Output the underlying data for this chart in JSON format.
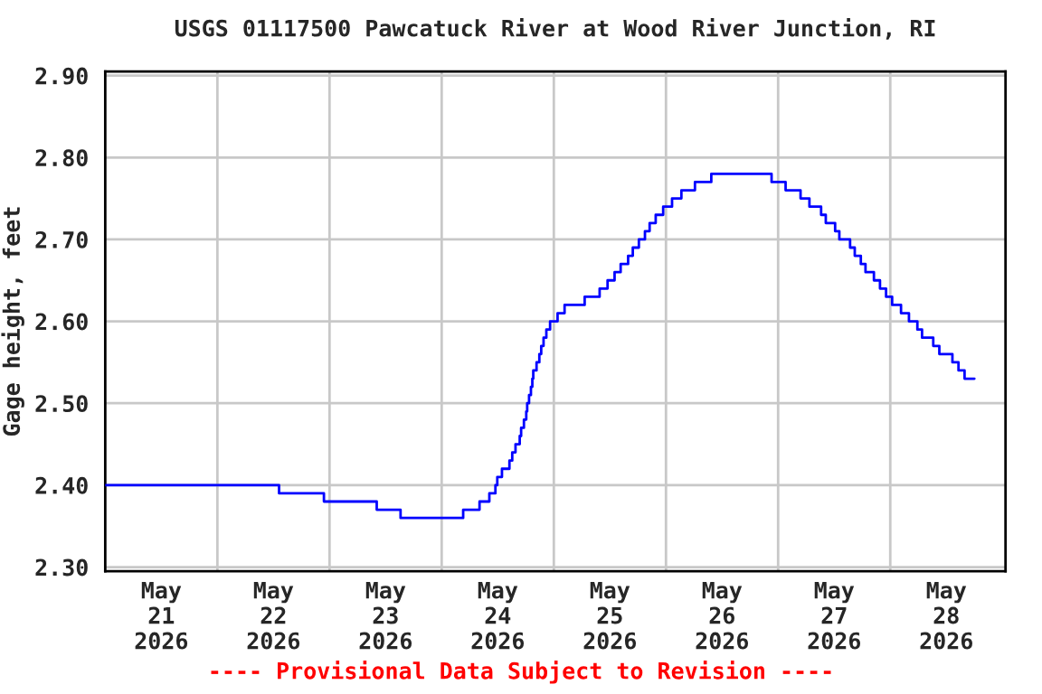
{
  "chart_data": {
    "type": "step",
    "title": "USGS 01117500 Pawcatuck River at Wood River Junction, RI",
    "ylabel": "Gage height, feet",
    "annotations": [
      "---- Provisional Data Subject to Revision ----"
    ],
    "x": [
      "2026-05-21T00:00",
      "2026-05-22T13:12",
      "2026-05-22T22:48",
      "2026-05-23T10:06",
      "2026-05-23T15:12",
      "2026-05-24T04:36",
      "2026-05-24T08:06",
      "2026-05-24T10:12",
      "2026-05-24T11:30",
      "2026-05-24T11:54",
      "2026-05-24T12:54",
      "2026-05-24T14:30",
      "2026-05-24T15:06",
      "2026-05-24T15:48",
      "2026-05-24T16:42",
      "2026-05-24T17:00",
      "2026-05-24T17:36",
      "2026-05-24T18:06",
      "2026-05-24T18:18",
      "2026-05-24T18:42",
      "2026-05-24T19:06",
      "2026-05-24T19:24",
      "2026-05-24T19:36",
      "2026-05-24T20:18",
      "2026-05-24T20:54",
      "2026-05-24T21:18",
      "2026-05-24T21:48",
      "2026-05-24T22:24",
      "2026-05-24T23:12",
      "2026-05-25T00:48",
      "2026-05-25T02:18",
      "2026-05-25T06:36",
      "2026-05-25T09:48",
      "2026-05-25T11:30",
      "2026-05-25T13:00",
      "2026-05-25T14:18",
      "2026-05-25T15:54",
      "2026-05-25T16:54",
      "2026-05-25T18:12",
      "2026-05-25T19:30",
      "2026-05-25T20:30",
      "2026-05-25T21:48",
      "2026-05-25T23:24",
      "2026-05-26T01:18",
      "2026-05-26T03:18",
      "2026-05-26T06:12",
      "2026-05-26T09:42",
      "2026-05-26T22:36",
      "2026-05-27T01:36",
      "2026-05-27T04:48",
      "2026-05-27T06:42",
      "2026-05-27T09:12",
      "2026-05-27T10:12",
      "2026-05-27T12:12",
      "2026-05-27T13:06",
      "2026-05-27T15:24",
      "2026-05-27T16:24",
      "2026-05-27T17:42",
      "2026-05-27T18:42",
      "2026-05-27T20:30",
      "2026-05-27T21:48",
      "2026-05-27T23:06",
      "2026-05-28T00:24",
      "2026-05-28T02:18",
      "2026-05-28T04:00",
      "2026-05-28T05:48",
      "2026-05-28T06:48",
      "2026-05-28T09:12",
      "2026-05-28T10:30",
      "2026-05-28T13:18",
      "2026-05-28T14:36",
      "2026-05-28T15:54",
      "2026-05-28T18:00"
    ],
    "series": [
      {
        "color": "#0000ff",
        "values": [
          2.4,
          2.39,
          2.38,
          2.37,
          2.36,
          2.37,
          2.38,
          2.39,
          2.4,
          2.41,
          2.42,
          2.43,
          2.44,
          2.45,
          2.46,
          2.47,
          2.48,
          2.49,
          2.5,
          2.51,
          2.52,
          2.53,
          2.54,
          2.55,
          2.56,
          2.57,
          2.58,
          2.59,
          2.6,
          2.61,
          2.62,
          2.63,
          2.64,
          2.65,
          2.66,
          2.67,
          2.68,
          2.69,
          2.7,
          2.71,
          2.72,
          2.73,
          2.74,
          2.75,
          2.76,
          2.77,
          2.78,
          2.77,
          2.76,
          2.75,
          2.74,
          2.73,
          2.72,
          2.71,
          2.7,
          2.69,
          2.68,
          2.67,
          2.66,
          2.65,
          2.64,
          2.63,
          2.62,
          2.61,
          2.6,
          2.59,
          2.58,
          2.57,
          2.56,
          2.55,
          2.54,
          2.53,
          2.53
        ]
      }
    ],
    "xlim": [
      "2026-05-21T00:00",
      "2026-05-29T00:40"
    ],
    "xticks": [
      {
        "value": "2026-05-21T12:00",
        "label": "May\n21\n2026"
      },
      {
        "value": "2026-05-22T00:00",
        "label": null
      },
      {
        "value": "2026-05-22T12:00",
        "label": "May\n22\n2026"
      },
      {
        "value": "2026-05-23T00:00",
        "label": null
      },
      {
        "value": "2026-05-23T12:00",
        "label": "May\n23\n2026"
      },
      {
        "value": "2026-05-24T00:00",
        "label": null
      },
      {
        "value": "2026-05-24T12:00",
        "label": "May\n24\n2026"
      },
      {
        "value": "2026-05-25T00:00",
        "label": null
      },
      {
        "value": "2026-05-25T12:00",
        "label": "May\n25\n2026"
      },
      {
        "value": "2026-05-26T00:00",
        "label": null
      },
      {
        "value": "2026-05-26T12:00",
        "label": "May\n26\n2026"
      },
      {
        "value": "2026-05-27T00:00",
        "label": null
      },
      {
        "value": "2026-05-27T12:00",
        "label": "May\n27\n2026"
      },
      {
        "value": "2026-05-28T00:00",
        "label": null
      },
      {
        "value": "2026-05-28T12:00",
        "label": "May\n28\n2026"
      }
    ],
    "ylim": [
      2.295,
      2.905
    ],
    "yticks": [
      {
        "value": 2.3,
        "label": "2.30"
      },
      {
        "value": 2.4,
        "label": "2.40"
      },
      {
        "value": 2.5,
        "label": "2.50"
      },
      {
        "value": 2.6,
        "label": "2.60"
      },
      {
        "value": 2.7,
        "label": "2.70"
      },
      {
        "value": 2.8,
        "label": "2.80"
      },
      {
        "value": 2.9,
        "label": "2.90"
      }
    ],
    "grid": true,
    "line_style": "solid",
    "marker": "none"
  }
}
